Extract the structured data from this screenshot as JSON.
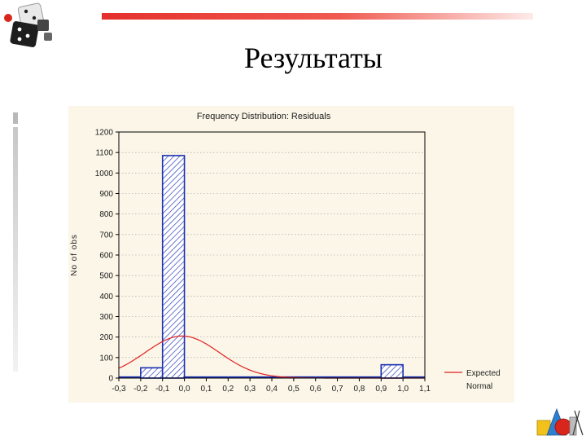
{
  "slide": {
    "title": "Результаты"
  },
  "logos": {
    "top_left": "dice-icon",
    "bottom_right": "geometry-shapes-icon"
  },
  "colors": {
    "accent": "#e5302c",
    "bars": "#1a2fb0",
    "curve": "#e02020"
  },
  "chart_data": {
    "type": "bar",
    "title": "Frequency Distribution: Residuals",
    "xlabel": "",
    "ylabel": "No of obs",
    "x_ticks": [
      "-0,3",
      "-0,2",
      "-0,1",
      "0,0",
      "0,1",
      "0,2",
      "0,3",
      "0,4",
      "0,5",
      "0,6",
      "0,7",
      "0,8",
      "0,9",
      "1,0",
      "1,1"
    ],
    "y_ticks": [
      "0",
      "100",
      "200",
      "300",
      "400",
      "500",
      "600",
      "700",
      "800",
      "900",
      "1000",
      "1100",
      "1200"
    ],
    "xlim": [
      -0.3,
      1.1
    ],
    "ylim": [
      0,
      1200
    ],
    "bin_width": 0.1,
    "bins": [
      {
        "start": -0.3,
        "value": 0
      },
      {
        "start": -0.2,
        "value": 50
      },
      {
        "start": -0.1,
        "value": 1085
      },
      {
        "start": 0.0,
        "value": 0
      },
      {
        "start": 0.1,
        "value": 0
      },
      {
        "start": 0.2,
        "value": 0
      },
      {
        "start": 0.3,
        "value": 0
      },
      {
        "start": 0.4,
        "value": 0
      },
      {
        "start": 0.5,
        "value": 0
      },
      {
        "start": 0.6,
        "value": 0
      },
      {
        "start": 0.7,
        "value": 0
      },
      {
        "start": 0.8,
        "value": 0
      },
      {
        "start": 0.9,
        "value": 65
      },
      {
        "start": 1.0,
        "value": 0
      }
    ],
    "expected_normal": {
      "mean": -0.01,
      "sd": 0.17,
      "peak": 205
    },
    "grid": true,
    "legend": {
      "position": "bottom-right",
      "entries": [
        "Expected",
        "Normal"
      ]
    }
  }
}
